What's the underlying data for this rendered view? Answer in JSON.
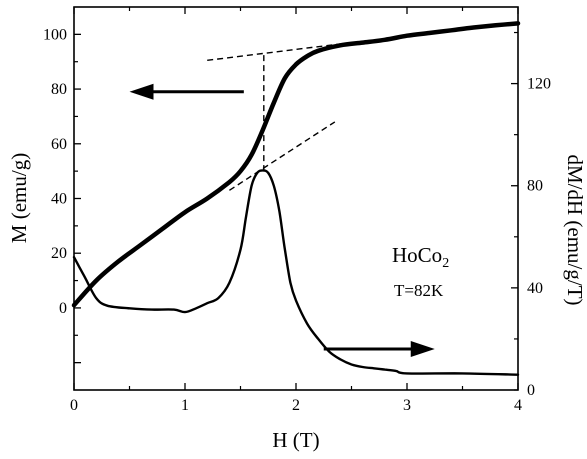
{
  "chart_data": {
    "type": "line",
    "xlabel": "H (T)",
    "ylabel": "M (emu/g)",
    "y2label": "dM/dH (emu/g/T)",
    "xlim": [
      0,
      4
    ],
    "ylim": [
      -30,
      110
    ],
    "y2lim": [
      0,
      150
    ],
    "x_ticks": [
      "0",
      "1",
      "2",
      "3",
      "4"
    ],
    "y_ticks": [
      "0",
      "20",
      "40",
      "60",
      "80",
      "100"
    ],
    "y2_ticks": [
      "40",
      "80",
      "120"
    ],
    "annotation": {
      "compound_base": "HoCo",
      "compound_subscript": "2",
      "temperature": "T=82K"
    },
    "series": [
      {
        "axis": "left",
        "color": "#000000",
        "x": [
          0.0,
          0.2,
          0.4,
          0.6,
          0.8,
          1.0,
          1.2,
          1.4,
          1.5,
          1.6,
          1.7,
          1.8,
          1.9,
          2.0,
          2.1,
          2.2,
          2.4,
          2.6,
          2.8,
          3.0,
          3.2,
          3.4,
          3.6,
          3.8,
          4.0
        ],
        "values": [
          1,
          10,
          17,
          23,
          29,
          35,
          40,
          46,
          50,
          56,
          65,
          75,
          84,
          89,
          92,
          94,
          96,
          97,
          98,
          99.5,
          100.5,
          101.5,
          102.5,
          103.3,
          104
        ]
      },
      {
        "axis": "right",
        "color": "#000000",
        "x": [
          0.0,
          0.05,
          0.1,
          0.2,
          0.3,
          0.5,
          0.7,
          0.9,
          1.0,
          1.1,
          1.2,
          1.3,
          1.4,
          1.5,
          1.55,
          1.6,
          1.65,
          1.7,
          1.75,
          1.8,
          1.85,
          1.9,
          1.95,
          2.0,
          2.1,
          2.2,
          2.3,
          2.4,
          2.5,
          2.6,
          2.7,
          2.8,
          2.9,
          3.0,
          3.5,
          4.0
        ],
        "values": [
          52,
          48,
          44,
          36,
          33,
          32,
          31.5,
          31.5,
          30.5,
          32,
          34,
          36,
          42,
          55,
          68,
          80,
          85,
          86,
          85,
          80,
          70,
          55,
          42,
          35,
          26,
          20,
          15,
          12,
          10,
          9,
          8.5,
          8,
          7.5,
          6.5,
          6.5,
          6
        ]
      }
    ],
    "guides": [
      {
        "style": "dashed",
        "x": [
          1.2,
          2.4
        ],
        "values": [
          90.5,
          96.5
        ]
      },
      {
        "style": "dashed",
        "x": [
          1.4,
          2.35
        ],
        "values": [
          43,
          68
        ]
      },
      {
        "style": "dashed",
        "x": [
          1.71,
          1.71
        ],
        "values": [
          50,
          93
        ]
      }
    ],
    "arrows": [
      {
        "points_to": "left",
        "x": [
          1.53,
          0.5
        ],
        "values": [
          79,
          79
        ]
      },
      {
        "points_to": "right",
        "x": [
          2.25,
          3.25
        ],
        "values": [
          -15,
          -15
        ]
      }
    ]
  }
}
